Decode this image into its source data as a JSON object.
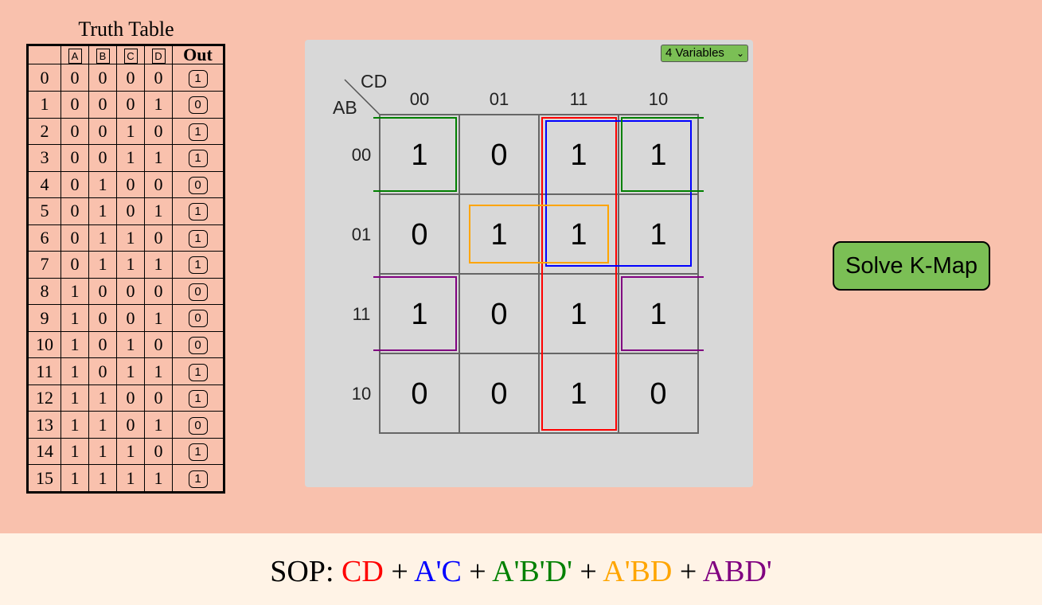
{
  "truth_table": {
    "title": "Truth Table",
    "headers": [
      "A",
      "B",
      "C",
      "D"
    ],
    "out_header": "Out",
    "rows": [
      {
        "index": "0",
        "a": "0",
        "b": "0",
        "c": "0",
        "d": "0",
        "out": "1"
      },
      {
        "index": "1",
        "a": "0",
        "b": "0",
        "c": "0",
        "d": "1",
        "out": "0"
      },
      {
        "index": "2",
        "a": "0",
        "b": "0",
        "c": "1",
        "d": "0",
        "out": "1"
      },
      {
        "index": "3",
        "a": "0",
        "b": "0",
        "c": "1",
        "d": "1",
        "out": "1"
      },
      {
        "index": "4",
        "a": "0",
        "b": "1",
        "c": "0",
        "d": "0",
        "out": "0"
      },
      {
        "index": "5",
        "a": "0",
        "b": "1",
        "c": "0",
        "d": "1",
        "out": "1"
      },
      {
        "index": "6",
        "a": "0",
        "b": "1",
        "c": "1",
        "d": "0",
        "out": "1"
      },
      {
        "index": "7",
        "a": "0",
        "b": "1",
        "c": "1",
        "d": "1",
        "out": "1"
      },
      {
        "index": "8",
        "a": "1",
        "b": "0",
        "c": "0",
        "d": "0",
        "out": "0"
      },
      {
        "index": "9",
        "a": "1",
        "b": "0",
        "c": "0",
        "d": "1",
        "out": "0"
      },
      {
        "index": "10",
        "a": "1",
        "b": "0",
        "c": "1",
        "d": "0",
        "out": "0"
      },
      {
        "index": "11",
        "a": "1",
        "b": "0",
        "c": "1",
        "d": "1",
        "out": "1"
      },
      {
        "index": "12",
        "a": "1",
        "b": "1",
        "c": "0",
        "d": "0",
        "out": "1"
      },
      {
        "index": "13",
        "a": "1",
        "b": "1",
        "c": "0",
        "d": "1",
        "out": "0"
      },
      {
        "index": "14",
        "a": "1",
        "b": "1",
        "c": "1",
        "d": "0",
        "out": "1"
      },
      {
        "index": "15",
        "a": "1",
        "b": "1",
        "c": "1",
        "d": "1",
        "out": "1"
      }
    ]
  },
  "kmap": {
    "variable_select": "4 Variables",
    "row_var_label": "AB",
    "col_var_label": "CD",
    "col_headers": [
      "00",
      "01",
      "11",
      "10"
    ],
    "row_headers": [
      "00",
      "01",
      "11",
      "10"
    ],
    "cells": [
      [
        "1",
        "0",
        "1",
        "1"
      ],
      [
        "0",
        "1",
        "1",
        "1"
      ],
      [
        "1",
        "0",
        "1",
        "1"
      ],
      [
        "0",
        "0",
        "1",
        "0"
      ]
    ],
    "groups": [
      {
        "term": "CD",
        "color": "#ff0000"
      },
      {
        "term": "A'C",
        "color": "#0000ff"
      },
      {
        "term": "A'B'D'",
        "color": "#008000"
      },
      {
        "term": "A'BD",
        "color": "#ffa500"
      },
      {
        "term": "ABD'",
        "color": "#800080"
      }
    ]
  },
  "solve_button": {
    "label": "Solve K-Map",
    "color": "#7bbf55"
  },
  "sop": {
    "prefix": "SOP: ",
    "separator": " + ",
    "terms": [
      {
        "text": "CD",
        "color": "#ff0000"
      },
      {
        "text": "A'C",
        "color": "#0000ff"
      },
      {
        "text": "A'B'D'",
        "color": "#008000"
      },
      {
        "text": "A'BD",
        "color": "#ffa500"
      },
      {
        "text": "ABD'",
        "color": "#800080"
      }
    ]
  }
}
